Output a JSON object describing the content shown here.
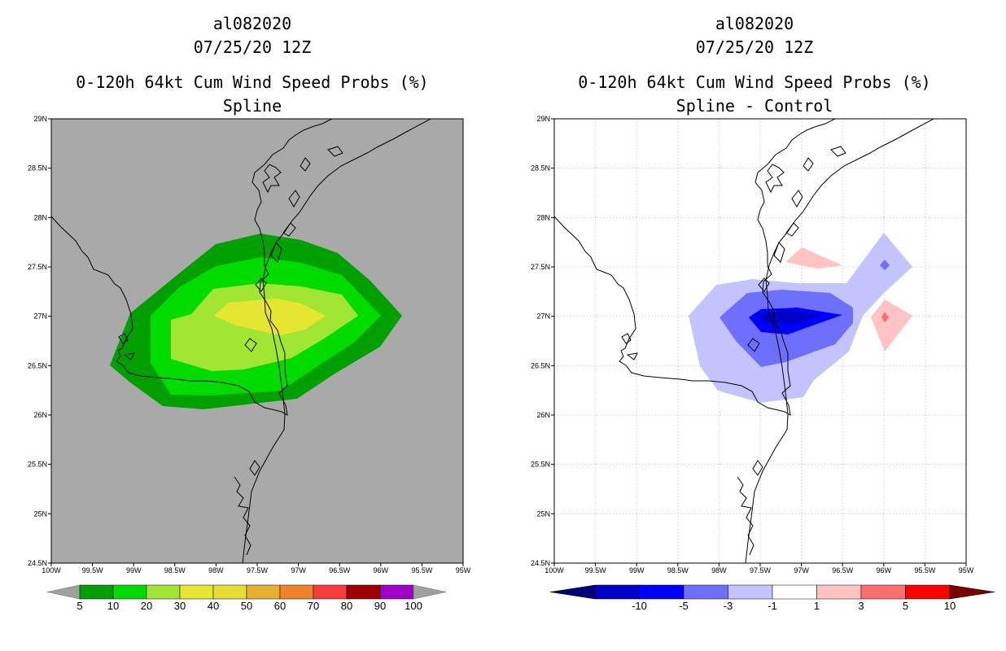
{
  "panels": [
    {
      "id": "left",
      "storm": "al082020",
      "datetime": "07/25/20 12Z",
      "product": "0-120h 64kt Cum Wind Speed Probs (%)",
      "subtitle": "Spline",
      "legend_labels": [
        "5",
        "10",
        "20",
        "30",
        "40",
        "50",
        "60",
        "70",
        "80",
        "90",
        "100"
      ],
      "legend_colors": [
        "#00a000",
        "#00dc00",
        "#a0e632",
        "#e6e632",
        "#e6dc32",
        "#e6af2d",
        "#f08228",
        "#fa3c3c",
        "#a00000",
        "#a000c8"
      ]
    },
    {
      "id": "right",
      "storm": "al082020",
      "datetime": "07/25/20 12Z",
      "product": "0-120h 64kt Cum Wind Speed Probs (%)",
      "subtitle": "Spline - Control",
      "legend_labels": [
        "-10",
        "-5",
        "-3",
        "-1",
        "1",
        "3",
        "5",
        "10"
      ],
      "legend_colors": [
        "#0000c8",
        "#0000ff",
        "#6e6eff",
        "#c3c3ff",
        "#ffffff",
        "#ffc3c3",
        "#ff6e6e",
        "#ff0000"
      ]
    }
  ],
  "axes": {
    "lon_labels": [
      "100W",
      "99.5W",
      "99W",
      "98.5W",
      "98W",
      "97.5W",
      "97W",
      "96.5W",
      "96W",
      "95.5W",
      "95W"
    ],
    "lat_labels": [
      "24.5N",
      "25N",
      "25.5N",
      "26N",
      "26.5N",
      "27N",
      "27.5N",
      "28N",
      "28.5N",
      "29N"
    ]
  },
  "colors": {
    "map_background_left": "#a9a9a9",
    "coastline": "#000000",
    "grid": "#bdbdbd",
    "legend_end_low": "#a0a0a0",
    "legend_end_high": "#a0a0a0",
    "diff_end_low": "#000078",
    "diff_end_high": "#780000"
  }
}
